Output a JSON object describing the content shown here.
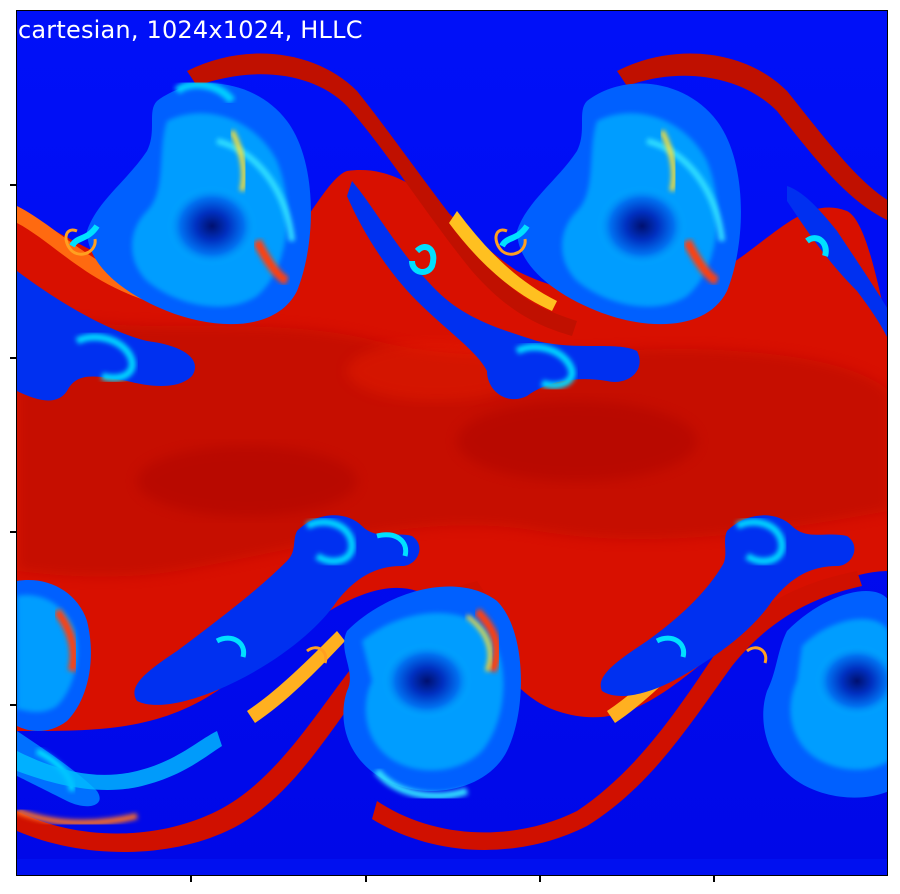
{
  "figure": {
    "label": "cartesian, 1024x1024, HLLC",
    "colormap": "jet",
    "colors": {
      "low": "#0000f0",
      "mid_low": "#00c8ff",
      "mid": "#f0f020",
      "high": "#e01000",
      "max": "#900000"
    },
    "axes": {
      "x_ticks": 4,
      "y_ticks": 4,
      "tick_labels_visible": false
    }
  }
}
